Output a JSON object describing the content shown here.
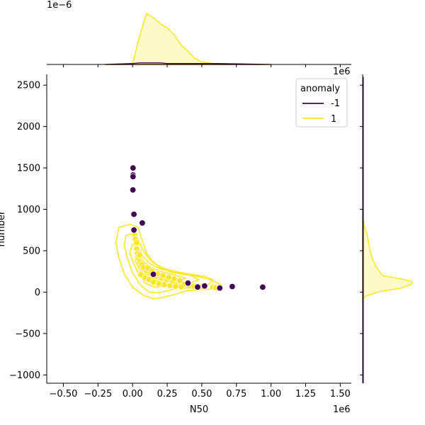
{
  "chart_data": {
    "type": "scatter",
    "xlabel": "N50",
    "ylabel": "number",
    "x_offset_label": "1e6",
    "top_offset_label": "1e−6",
    "right_offset_label": "1e6",
    "xlim": [
      -0.62,
      1.58
    ],
    "ylim": [
      -1100,
      2630
    ],
    "x_ticks": [
      -0.5,
      -0.25,
      0.0,
      0.25,
      0.5,
      0.75,
      1.0,
      1.25,
      1.5
    ],
    "x_tick_labels": [
      "−0.50",
      "−0.25",
      "0.00",
      "0.25",
      "0.50",
      "0.75",
      "1.00",
      "1.25",
      "1.50"
    ],
    "y_ticks": [
      -1000,
      -500,
      0,
      500,
      1000,
      1500,
      2000,
      2500
    ],
    "y_tick_labels": [
      "−1000",
      "−500",
      "0",
      "500",
      "1000",
      "1500",
      "2000",
      "2500"
    ],
    "legend": {
      "title": "anomaly",
      "placement": "top-right",
      "entries": [
        {
          "label": "-1",
          "color": "#440154"
        },
        {
          "label": "1",
          "color": "#fde725"
        }
      ]
    },
    "grid": false,
    "series": [
      {
        "name": "-1",
        "color": "#440154",
        "points": [
          [
            0.003,
            1500
          ],
          [
            0.003,
            1415
          ],
          [
            0.003,
            1395
          ],
          [
            0.002,
            1235
          ],
          [
            0.01,
            940
          ],
          [
            0.07,
            835
          ],
          [
            0.01,
            750
          ],
          [
            0.15,
            215
          ],
          [
            0.47,
            62
          ],
          [
            0.52,
            75
          ],
          [
            0.63,
            50
          ],
          [
            0.72,
            68
          ],
          [
            0.94,
            60
          ],
          [
            0.4,
            110
          ]
        ]
      },
      {
        "name": "1",
        "color": "#fde725",
        "points": [
          [
            0.015,
            690
          ],
          [
            0.02,
            640
          ],
          [
            0.025,
            580
          ],
          [
            0.03,
            520
          ],
          [
            0.035,
            470
          ],
          [
            0.04,
            430
          ],
          [
            0.045,
            400
          ],
          [
            0.05,
            370
          ],
          [
            0.055,
            340
          ],
          [
            0.06,
            310
          ],
          [
            0.07,
            280
          ],
          [
            0.08,
            260
          ],
          [
            0.09,
            240
          ],
          [
            0.1,
            220
          ],
          [
            0.12,
            200
          ],
          [
            0.14,
            180
          ],
          [
            0.16,
            165
          ],
          [
            0.18,
            150
          ],
          [
            0.2,
            140
          ],
          [
            0.22,
            125
          ],
          [
            0.24,
            115
          ],
          [
            0.26,
            110
          ],
          [
            0.28,
            100
          ],
          [
            0.3,
            95
          ],
          [
            0.32,
            90
          ],
          [
            0.34,
            85
          ],
          [
            0.36,
            80
          ],
          [
            0.38,
            75
          ],
          [
            0.41,
            72
          ],
          [
            0.44,
            70
          ],
          [
            0.5,
            65
          ],
          [
            0.58,
            60
          ],
          [
            0.6,
            55
          ],
          [
            0.03,
            600
          ],
          [
            0.05,
            450
          ],
          [
            0.07,
            330
          ],
          [
            0.1,
            260
          ],
          [
            0.13,
            230
          ],
          [
            0.17,
            190
          ],
          [
            0.21,
            170
          ],
          [
            0.25,
            150
          ],
          [
            0.29,
            130
          ],
          [
            0.33,
            110
          ],
          [
            0.37,
            95
          ],
          [
            0.06,
            210
          ],
          [
            0.09,
            170
          ],
          [
            0.12,
            150
          ],
          [
            0.15,
            120
          ],
          [
            0.19,
            100
          ],
          [
            0.23,
            90
          ],
          [
            0.27,
            80
          ],
          [
            0.31,
            70
          ],
          [
            0.35,
            65
          ],
          [
            0.08,
            300
          ],
          [
            0.11,
            290
          ],
          [
            0.14,
            250
          ],
          [
            0.18,
            220
          ],
          [
            0.22,
            200
          ],
          [
            0.26,
            180
          ],
          [
            0.3,
            160
          ],
          [
            0.34,
            140
          ]
        ]
      }
    ],
    "marginal_x": {
      "type": "kde",
      "x": [
        -0.2,
        0.0,
        0.05,
        0.1,
        0.15,
        0.2,
        0.25,
        0.3,
        0.35,
        0.4,
        0.45,
        0.5,
        0.6,
        0.8,
        1.0
      ],
      "density_one": [
        0,
        0.02,
        0.55,
        1.0,
        0.92,
        0.8,
        0.72,
        0.58,
        0.38,
        0.26,
        0.12,
        0.05,
        0.01,
        0,
        0
      ],
      "density_neg": [
        0,
        0.02,
        0.03,
        0.03,
        0.03,
        0.03,
        0.02,
        0.02,
        0.02,
        0.02,
        0.02,
        0.02,
        0.02,
        0.01,
        0
      ]
    },
    "marginal_y": {
      "type": "kde",
      "y": [
        -100,
        -50,
        0,
        50,
        100,
        125,
        150,
        200,
        300,
        400,
        500,
        600,
        700,
        800,
        900
      ],
      "density_one": [
        0,
        0.05,
        0.3,
        0.78,
        1.0,
        1.0,
        0.85,
        0.4,
        0.28,
        0.2,
        0.15,
        0.12,
        0.09,
        0.03,
        0
      ]
    },
    "contours": [
      [
        [
          -0.1,
          780
        ],
        [
          -0.02,
          820
        ],
        [
          0.04,
          780
        ],
        [
          0.07,
          620
        ],
        [
          0.1,
          480
        ],
        [
          0.14,
          380
        ],
        [
          0.2,
          290
        ],
        [
          0.28,
          240
        ],
        [
          0.38,
          210
        ],
        [
          0.47,
          190
        ],
        [
          0.56,
          150
        ],
        [
          0.64,
          90
        ],
        [
          0.62,
          40
        ],
        [
          0.5,
          30
        ],
        [
          0.4,
          20
        ],
        [
          0.3,
          -30
        ],
        [
          0.2,
          -70
        ],
        [
          0.15,
          -80
        ],
        [
          0.08,
          -40
        ],
        [
          0.0,
          60
        ],
        [
          -0.06,
          220
        ],
        [
          -0.1,
          420
        ],
        [
          -0.12,
          600
        ],
        [
          -0.1,
          780
        ]
      ],
      [
        [
          -0.05,
          680
        ],
        [
          0.0,
          710
        ],
        [
          0.04,
          650
        ],
        [
          0.07,
          520
        ],
        [
          0.11,
          420
        ],
        [
          0.16,
          340
        ],
        [
          0.24,
          280
        ],
        [
          0.34,
          240
        ],
        [
          0.44,
          210
        ],
        [
          0.52,
          190
        ],
        [
          0.58,
          150
        ],
        [
          0.55,
          90
        ],
        [
          0.45,
          80
        ],
        [
          0.35,
          60
        ],
        [
          0.26,
          20
        ],
        [
          0.18,
          -10
        ],
        [
          0.12,
          0
        ],
        [
          0.06,
          80
        ],
        [
          0.0,
          230
        ],
        [
          -0.04,
          420
        ],
        [
          -0.06,
          560
        ],
        [
          -0.05,
          680
        ]
      ],
      [
        [
          0.0,
          580
        ],
        [
          0.03,
          600
        ],
        [
          0.05,
          520
        ],
        [
          0.08,
          420
        ],
        [
          0.13,
          340
        ],
        [
          0.2,
          280
        ],
        [
          0.3,
          240
        ],
        [
          0.42,
          200
        ],
        [
          0.48,
          150
        ],
        [
          0.42,
          110
        ],
        [
          0.32,
          90
        ],
        [
          0.23,
          70
        ],
        [
          0.16,
          60
        ],
        [
          0.09,
          110
        ],
        [
          0.04,
          230
        ],
        [
          0.0,
          380
        ],
        [
          -0.02,
          480
        ],
        [
          0.0,
          580
        ]
      ],
      [
        [
          0.02,
          480
        ],
        [
          0.05,
          460
        ],
        [
          0.08,
          370
        ],
        [
          0.13,
          300
        ],
        [
          0.2,
          250
        ],
        [
          0.3,
          210
        ],
        [
          0.38,
          170
        ],
        [
          0.33,
          130
        ],
        [
          0.24,
          110
        ],
        [
          0.16,
          100
        ],
        [
          0.1,
          150
        ],
        [
          0.05,
          260
        ],
        [
          0.02,
          380
        ],
        [
          0.02,
          480
        ]
      ]
    ]
  }
}
